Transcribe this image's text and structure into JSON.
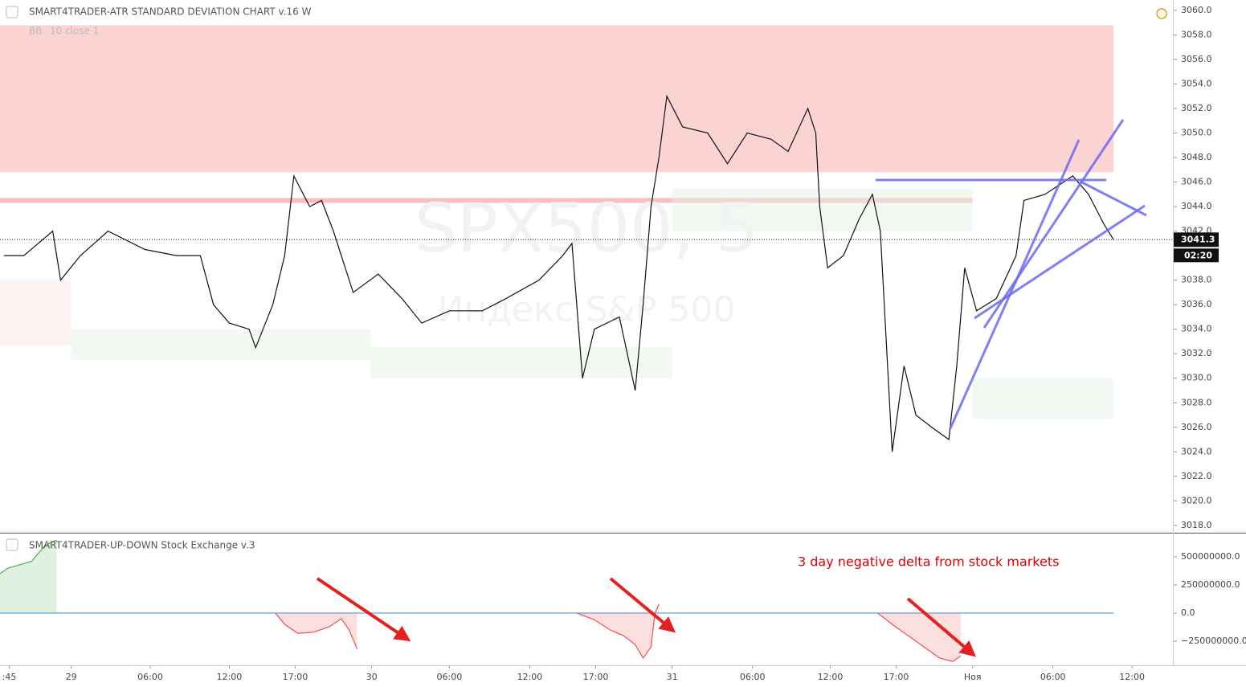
{
  "chart_data": [
    {
      "type": "line",
      "title": "SMART4TRADER-ATR STANDARD DEVIATION CHART v.16 W",
      "study_name": "BB",
      "study_params": "10 close 1",
      "watermark": "SPX500, 5",
      "watermark_subtitle": "Индекс S&P 500",
      "xlim": [
        0,
        89
      ],
      "ylim": [
        3017.4,
        3060.85
      ],
      "yticks": [
        {
          "value": 3018,
          "label": "3018.0"
        },
        {
          "value": 3020,
          "label": "3020.0"
        },
        {
          "value": 3022,
          "label": "3022.0"
        },
        {
          "value": 3024,
          "label": "3024.0"
        },
        {
          "value": 3026,
          "label": "3026.0"
        },
        {
          "value": 3028,
          "label": "3028.0"
        },
        {
          "value": 3030,
          "label": "3030.0"
        },
        {
          "value": 3032,
          "label": "3032.0"
        },
        {
          "value": 3034,
          "label": "3034.0"
        },
        {
          "value": 3036,
          "label": "3036.0"
        },
        {
          "value": 3038,
          "label": "3038.0"
        },
        {
          "value": 3040,
          "label": "3040.0"
        },
        {
          "value": 3042,
          "label": "3042.0"
        },
        {
          "value": 3044,
          "label": "3044.0"
        },
        {
          "value": 3046,
          "label": "3046.0"
        },
        {
          "value": 3048,
          "label": "3048.0"
        },
        {
          "value": 3050,
          "label": "3050.0"
        },
        {
          "value": 3052,
          "label": "3052.0"
        },
        {
          "value": 3054,
          "label": "3054.0"
        },
        {
          "value": 3056,
          "label": "3056.0"
        },
        {
          "value": 3058,
          "label": "3058.0"
        },
        {
          "value": 3060,
          "label": "3060.0"
        }
      ],
      "last_price": 3041.3,
      "countdown": "02:20",
      "zones": [
        {
          "x0": 0,
          "x1": 84.5,
          "y0": 3046.8,
          "y1": 3058.8,
          "color": "#f9a8a8"
        },
        {
          "x0": 0,
          "x1": 73.8,
          "y0": 3044.3,
          "y1": 3044.7,
          "color": "#f08080"
        },
        {
          "x0": 0,
          "x1": 5.4,
          "y0": 3032.7,
          "y1": 3038,
          "color": "#fde8e8"
        },
        {
          "x0": 5.4,
          "x1": 28.1,
          "y0": 3031.5,
          "y1": 3034,
          "color": "#e6f2e6"
        },
        {
          "x0": 28.1,
          "x1": 51,
          "y0": 3030,
          "y1": 3032.5,
          "color": "#e6f2e6"
        },
        {
          "x0": 51,
          "x1": 73.8,
          "y0": 3042,
          "y1": 3045.5,
          "color": "#e6f2e6"
        },
        {
          "x0": 73.8,
          "x1": 84.5,
          "y0": 3026.7,
          "y1": 3030,
          "color": "#e6f2e6"
        }
      ],
      "series": [
        {
          "color": "#111111",
          "x": [
            0.3,
            1.8,
            4.0,
            4.6,
            6.1,
            8.2,
            11.0,
            13.4,
            15.2,
            16.2,
            17.4,
            18.9,
            19.4,
            20.7,
            21.6,
            22.3,
            23.5,
            24.4,
            25.3,
            26.8,
            28.7,
            30.5,
            32.0,
            34.1,
            36.6,
            38.4,
            40.9,
            42.7,
            43.4,
            44.2,
            45.1,
            47.0,
            48.2,
            48.8,
            49.4,
            50.0,
            50.6,
            51.8,
            53.7,
            55.2,
            56.7,
            58.5,
            59.8,
            61.3,
            61.9,
            62.2,
            62.8,
            64.0,
            65.2,
            66.2,
            66.8,
            67.4,
            67.7,
            68.6,
            69.5,
            70.7,
            72.0,
            72.6,
            73.2,
            74.1,
            75.6,
            77.1,
            77.7,
            79.3,
            81.4,
            82.6,
            83.8,
            84.5
          ],
          "values": [
            3040,
            3040,
            3042,
            3038,
            3040,
            3042,
            3040.5,
            3040,
            3040,
            3036,
            3034.5,
            3034,
            3032.5,
            3036,
            3040,
            3046.5,
            3044,
            3044.5,
            3042,
            3037,
            3038.5,
            3036.5,
            3034.5,
            3035.5,
            3035.5,
            3036.5,
            3038,
            3040,
            3041,
            3030,
            3034,
            3035,
            3029,
            3036,
            3044,
            3048,
            3053,
            3050.5,
            3050,
            3047.5,
            3050,
            3049.5,
            3048.5,
            3052,
            3050,
            3044,
            3039,
            3040,
            3043,
            3045,
            3042,
            3030,
            3024,
            3031,
            3027,
            3026,
            3025,
            3031,
            3039,
            3035.5,
            3036.5,
            3040,
            3044.5,
            3045,
            3046.5,
            3045,
            3042.5,
            3041.3
          ]
        }
      ]
    },
    {
      "type": "area",
      "title": "SMART4TRADER-UP-DOWN Stock Exchange v.3",
      "annotation": "3 day negative delta from stock markets",
      "xlim": [
        0,
        89
      ],
      "ylim": [
        -464000000,
        707000000
      ],
      "yticks": [
        {
          "value": 500000000,
          "label": "500000000.0"
        },
        {
          "value": 250000000,
          "label": "250000000.0"
        },
        {
          "value": 0,
          "label": "0.0"
        },
        {
          "value": -250000000,
          "label": "−250000000.0"
        }
      ],
      "xticks": [
        {
          "value": 0.7,
          "label": ":45"
        },
        {
          "value": 5.4,
          "label": "29"
        },
        {
          "value": 11.4,
          "label": "06:00"
        },
        {
          "value": 17.4,
          "label": "12:00"
        },
        {
          "value": 22.4,
          "label": "17:00"
        },
        {
          "value": 28.2,
          "label": "30"
        },
        {
          "value": 34.1,
          "label": "06:00"
        },
        {
          "value": 40.2,
          "label": "12:00"
        },
        {
          "value": 45.2,
          "label": "17:00"
        },
        {
          "value": 51.0,
          "label": "31"
        },
        {
          "value": 57.1,
          "label": "06:00"
        },
        {
          "value": 63.0,
          "label": "12:00"
        },
        {
          "value": 68.0,
          "label": "17:00"
        },
        {
          "value": 73.8,
          "label": "Ноя"
        },
        {
          "value": 79.9,
          "label": "06:00"
        },
        {
          "value": 85.9,
          "label": "12:00"
        }
      ],
      "series": [
        {
          "color": "#4caf50",
          "x": [
            0,
            0.6,
            1.5,
            2.4,
            3.4,
            4.3
          ],
          "values": [
            350000000,
            400000000,
            430000000,
            460000000,
            600000000,
            650000000
          ]
        },
        {
          "color": "#f05050",
          "x": [
            20.9,
            21.6,
            22.6,
            23.8,
            25.0,
            25.9,
            26.5,
            27.1,
            null,
            43.8,
            45.1,
            46.3,
            47.3,
            48.2,
            48.8,
            49.4,
            49.7,
            50.0,
            null,
            66.6,
            67.7,
            68.9,
            70.1,
            71.3,
            72.3,
            72.9
          ],
          "values": [
            0,
            -100000000,
            -180000000,
            -170000000,
            -120000000,
            -50000000,
            -150000000,
            -320000000,
            null,
            0,
            -60000000,
            -150000000,
            -200000000,
            -280000000,
            -400000000,
            -300000000,
            0,
            80000000,
            null,
            0,
            -100000000,
            -200000000,
            -300000000,
            -400000000,
            -430000000,
            -380000000
          ]
        }
      ]
    }
  ]
}
